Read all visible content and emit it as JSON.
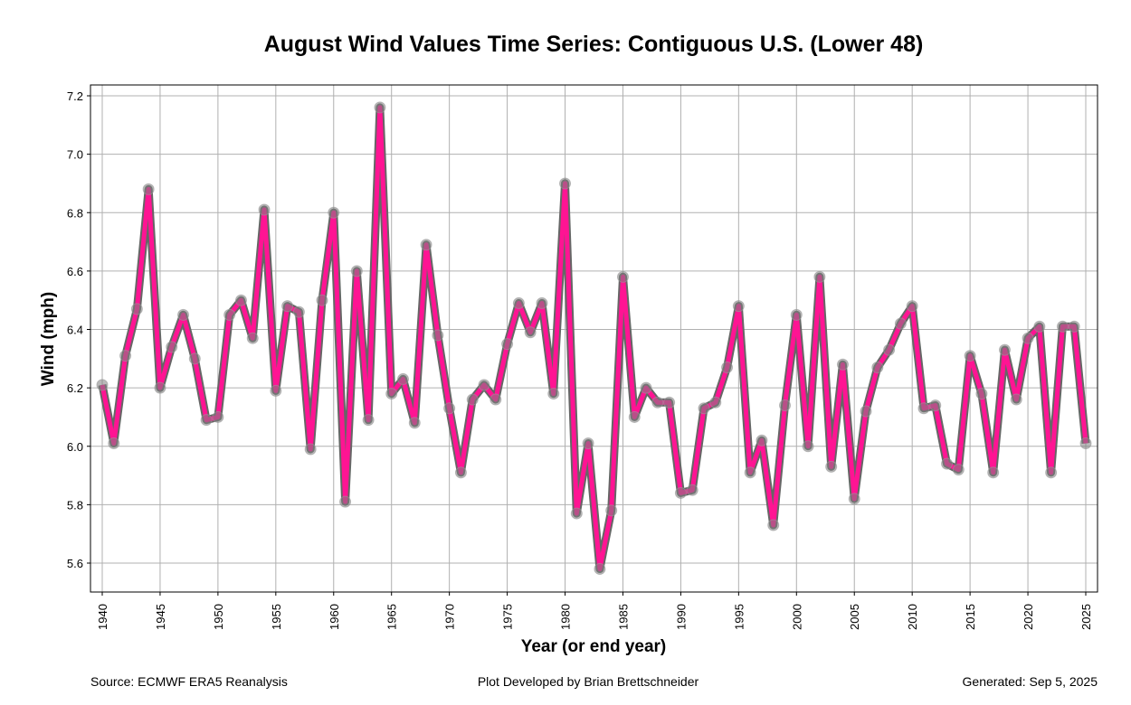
{
  "chart_data": {
    "type": "line",
    "title": "August Wind Values Time Series: Contiguous U.S. (Lower 48)",
    "xlabel": "Year (or end year)",
    "ylabel": "Wind (mph)",
    "xlim": [
      1939.0,
      2026.0
    ],
    "ylim": [
      5.5,
      7.235
    ],
    "xticks": [
      1940,
      1945,
      1950,
      1955,
      1960,
      1965,
      1970,
      1975,
      1980,
      1985,
      1990,
      1995,
      2000,
      2005,
      2010,
      2015,
      2020,
      2025
    ],
    "yticks": [
      "5.6",
      "5.8",
      "6.0",
      "6.2",
      "6.4",
      "6.6",
      "6.8",
      "7.0",
      "7.2"
    ],
    "grid": true,
    "line_color": "#ff1493",
    "outline_color": "#666666",
    "marker_color": "#808080",
    "x": [
      1940,
      1941,
      1942,
      1943,
      1944,
      1945,
      1946,
      1947,
      1948,
      1949,
      1950,
      1951,
      1952,
      1953,
      1954,
      1955,
      1956,
      1957,
      1958,
      1959,
      1960,
      1961,
      1962,
      1963,
      1964,
      1965,
      1966,
      1967,
      1968,
      1969,
      1970,
      1971,
      1972,
      1973,
      1974,
      1975,
      1976,
      1977,
      1978,
      1979,
      1980,
      1981,
      1982,
      1983,
      1984,
      1985,
      1986,
      1987,
      1988,
      1989,
      1990,
      1991,
      1992,
      1993,
      1994,
      1995,
      1996,
      1997,
      1998,
      1999,
      2000,
      2001,
      2002,
      2003,
      2004,
      2005,
      2006,
      2007,
      2008,
      2009,
      2010,
      2011,
      2012,
      2013,
      2014,
      2015,
      2016,
      2017,
      2018,
      2019,
      2020,
      2021,
      2022,
      2023,
      2024,
      2025
    ],
    "values": [
      6.21,
      6.01,
      6.31,
      6.47,
      6.88,
      6.2,
      6.34,
      6.45,
      6.3,
      6.09,
      6.1,
      6.45,
      6.5,
      6.37,
      6.81,
      6.19,
      6.48,
      6.46,
      5.99,
      6.5,
      6.8,
      5.81,
      6.6,
      6.09,
      7.16,
      6.18,
      6.23,
      6.08,
      6.69,
      6.38,
      6.13,
      5.91,
      6.16,
      6.21,
      6.16,
      6.35,
      6.49,
      6.39,
      6.49,
      6.18,
      6.9,
      5.77,
      6.01,
      5.58,
      5.78,
      6.58,
      6.1,
      6.2,
      6.15,
      6.15,
      5.84,
      5.85,
      6.13,
      6.15,
      6.27,
      6.48,
      5.91,
      6.02,
      5.73,
      6.14,
      6.45,
      6.0,
      6.58,
      5.93,
      6.28,
      5.82,
      6.12,
      6.27,
      6.33,
      6.42,
      6.48,
      6.13,
      6.14,
      5.94,
      5.92,
      6.31,
      6.18,
      5.91,
      6.33,
      6.16,
      6.37,
      6.41,
      5.91,
      6.41,
      6.41,
      6.01
    ]
  },
  "footer": {
    "source": "Source: ECMWF ERA5 Reanalysis",
    "developer": "Plot Developed by Brian Brettschneider",
    "generated": "Generated: Sep 5, 2025"
  }
}
